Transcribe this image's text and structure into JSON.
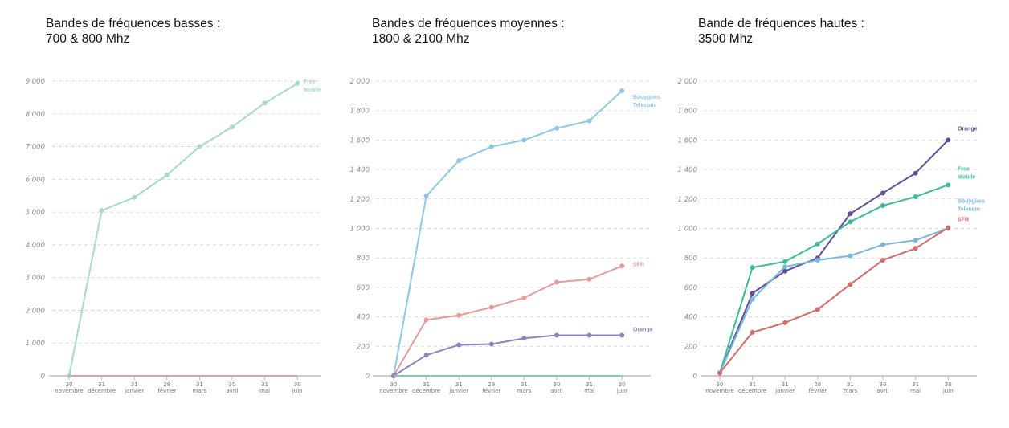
{
  "chart_data": [
    {
      "type": "line",
      "title_lines": [
        "Bandes de fréquences basses :",
        "700 & 800 Mhz"
      ],
      "x_ticks": [
        [
          "30",
          "novembre"
        ],
        [
          "31",
          "décembre"
        ],
        [
          "31",
          "janvier"
        ],
        [
          "28",
          "février"
        ],
        [
          "31",
          "mars"
        ],
        [
          "30",
          "avril"
        ],
        [
          "31",
          "mai"
        ],
        [
          "30",
          "juin"
        ]
      ],
      "y_ticks": [
        "0",
        "1 000",
        "2 000",
        "3 000",
        "4 000",
        "5 000",
        "6 000",
        "7 000",
        "8 000",
        "9 000"
      ],
      "ylim": [
        0,
        9000
      ],
      "grid": true,
      "series": [
        {
          "name": [
            "Free",
            "Mobile"
          ],
          "color": "#a6dbc6",
          "label_dy": [
            0,
            10
          ],
          "values": [
            0,
            5050,
            5450,
            6130,
            7000,
            7600,
            8330,
            8930
          ]
        },
        {
          "name": null,
          "color": "#dba0b0",
          "values": [
            0,
            0,
            0,
            0,
            0,
            0,
            0,
            0
          ]
        }
      ]
    },
    {
      "type": "line",
      "title_lines": [
        "Bandes de fréquences moyennes :",
        "1800 & 2100 Mhz"
      ],
      "x_ticks": [
        [
          "30",
          "novembre"
        ],
        [
          "31",
          "décembre"
        ],
        [
          "31",
          "janvier"
        ],
        [
          "28",
          "février"
        ],
        [
          "31",
          "mars"
        ],
        [
          "30",
          "avril"
        ],
        [
          "31",
          "mai"
        ],
        [
          "30",
          "juin"
        ]
      ],
      "y_ticks": [
        "0",
        "200",
        "400",
        "600",
        "800",
        "1 000",
        "1 200",
        "1 400",
        "1 600",
        "1 800",
        "2 000"
      ],
      "ylim": [
        0,
        2000
      ],
      "grid": true,
      "series": [
        {
          "name": [
            "Bouygues",
            "Telecom"
          ],
          "color": "#8fc8e4",
          "label_dy": [
            10,
            20
          ],
          "values": [
            0,
            1220,
            1460,
            1555,
            1600,
            1680,
            1730,
            1935
          ]
        },
        {
          "name": [
            "SFR"
          ],
          "color": "#e39b9b",
          "label_dy": [
            0
          ],
          "values": [
            0,
            380,
            410,
            465,
            530,
            635,
            655,
            745
          ]
        },
        {
          "name": [
            "Orange"
          ],
          "color": "#8e83b8",
          "label_dy": [
            -5
          ],
          "values": [
            0,
            140,
            210,
            215,
            255,
            275,
            275,
            275
          ]
        },
        {
          "name": null,
          "color": "#7fcfae",
          "values": [
            0,
            0,
            0,
            0,
            0,
            0,
            0,
            0
          ]
        }
      ]
    },
    {
      "type": "line",
      "title_lines": [
        "Bande de fréquences hautes :",
        "3500 Mhz"
      ],
      "x_ticks": [
        [
          "30",
          "novembre"
        ],
        [
          "31",
          "décembre"
        ],
        [
          "31",
          "janvier"
        ],
        [
          "28",
          "février"
        ],
        [
          "31",
          "mars"
        ],
        [
          "30",
          "avril"
        ],
        [
          "31",
          "mai"
        ],
        [
          "30",
          "juin"
        ]
      ],
      "y_ticks": [
        "0",
        "200",
        "400",
        "600",
        "800",
        "1 000",
        "1 200",
        "1 400",
        "1 600",
        "1 800",
        "2 000"
      ],
      "ylim": [
        0,
        2000
      ],
      "grid": true,
      "series": [
        {
          "name": [
            "Orange"
          ],
          "color": "#5e4f96",
          "label_dy": [
            -12
          ],
          "values": [
            20,
            560,
            710,
            800,
            1100,
            1240,
            1375,
            1600
          ]
        },
        {
          "name": [
            "Free",
            "Mobile"
          ],
          "color": "#3dbb96",
          "label_dy": [
            -18,
            -8
          ],
          "values": [
            20,
            735,
            775,
            895,
            1045,
            1155,
            1215,
            1295
          ]
        },
        {
          "name": [
            "Bouygues",
            "Telecom"
          ],
          "color": "#78b7dc",
          "label_dy": [
            -32,
            -22
          ],
          "values": [
            20,
            520,
            740,
            785,
            815,
            890,
            920,
            1000
          ]
        },
        {
          "name": [
            "SFR"
          ],
          "color": "#d36b6b",
          "label_dy": [
            -8
          ],
          "values": [
            20,
            295,
            360,
            450,
            620,
            785,
            865,
            1005
          ]
        }
      ]
    }
  ]
}
